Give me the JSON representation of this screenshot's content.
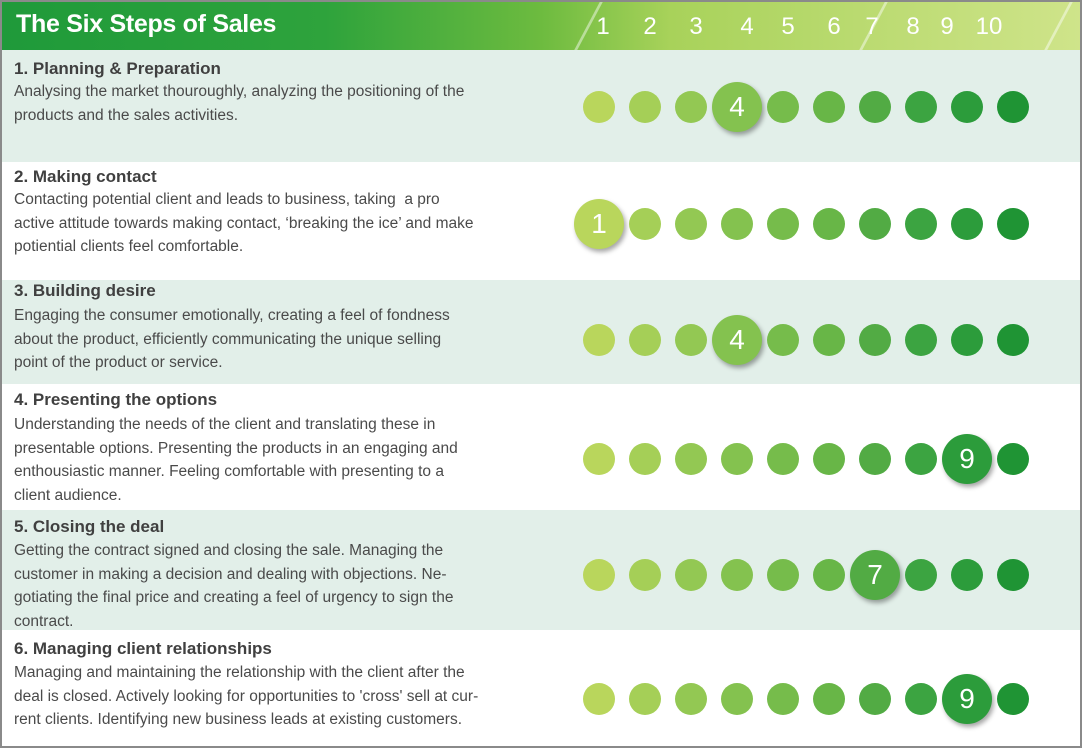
{
  "header": {
    "title": "The Six Steps of Sales",
    "scale": [
      "1",
      "2",
      "3",
      "4",
      "5",
      "6",
      "7",
      "8",
      "9",
      "10"
    ]
  },
  "colors": [
    "#b9d65c",
    "#a5cf57",
    "#93c853",
    "#84c24f",
    "#76bc4b",
    "#68b647",
    "#52ab44",
    "#3ca441",
    "#2c9c3b",
    "#1f9434"
  ],
  "rows": [
    {
      "title": "1. Planning & Preparation",
      "description": "Analysing the market thouroughly, analyzing the positioning of the\nproducts and the sales activities.",
      "score": 4
    },
    {
      "title": "2. Making contact",
      "description": "Contacting potential client and leads to business, taking  a pro\nactive attitude towards making contact, ‘breaking the ice’ and make\npotiential clients feel comfortable.",
      "score": 1
    },
    {
      "title": "3. Building desire",
      "description": "Engaging the consumer emotionally, creating a feel of fondness\nabout the product, efficiently communicating the unique selling\npoint of the product or service.",
      "score": 4
    },
    {
      "title": "4. Presenting the options",
      "description": "Understanding the needs of the client and translating these in\npresentable options. Presenting the products in an engaging and\nenthousiastic manner. Feeling comfortable with presenting to a\nclient audience.",
      "score": 9
    },
    {
      "title": "5. Closing the deal",
      "description": "Getting the contract signed and closing the sale. Managing the\ncustomer in making a decision and dealing with objections. Ne-\ngotiating the final price and creating a feel of urgency to sign the\ncontract.",
      "score": 7
    },
    {
      "title": "6. Managing client relationships",
      "description": "Managing and maintaining the relationship with the client after the\ndeal is closed. Actively looking for opportunities to 'cross' sell at cur-\nrent clients. Identifying new business leads at existing customers.",
      "score": 9
    }
  ]
}
